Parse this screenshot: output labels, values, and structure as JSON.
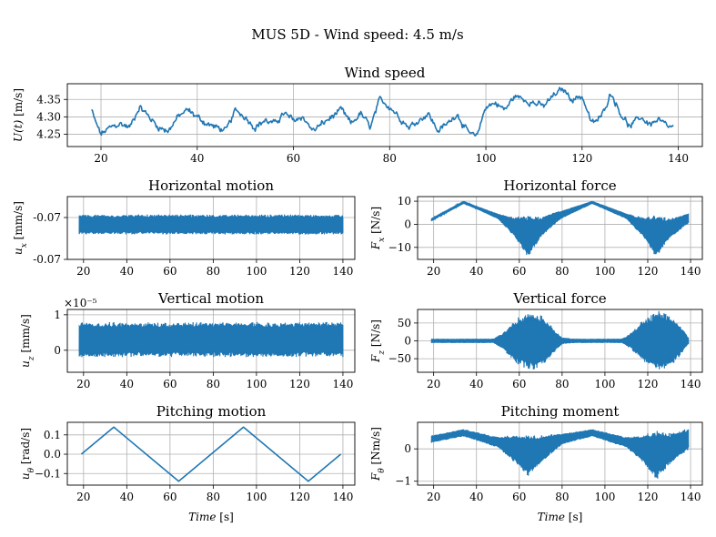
{
  "figure": {
    "title": "MUS 5D - Wind speed: 4.5 m/s"
  },
  "chart_data": [
    {
      "id": "wind",
      "type": "line",
      "title": "Wind speed",
      "xlabel": "",
      "ylabel": "U(t) [m/s]",
      "xlim": [
        13,
        145
      ],
      "ylim": [
        4.215,
        4.395
      ],
      "xticks": [
        20,
        40,
        60,
        80,
        100,
        120,
        140
      ],
      "yticks": [
        4.25,
        4.3,
        4.35
      ],
      "yticklabels": [
        "4.25",
        "4.30",
        "4.35"
      ],
      "grid": true,
      "color": "#1f77b4",
      "x": [
        18,
        19,
        20,
        22,
        24,
        26,
        28,
        30,
        32,
        34,
        36,
        38,
        40,
        42,
        44,
        46,
        48,
        50,
        52,
        54,
        56,
        58,
        60,
        62,
        64,
        66,
        68,
        70,
        72,
        74,
        76,
        78,
        80,
        82,
        84,
        86,
        88,
        90,
        92,
        94,
        96,
        98,
        100,
        102,
        104,
        106,
        108,
        110,
        112,
        114,
        116,
        118,
        120,
        122,
        124,
        126,
        128,
        130,
        132,
        134,
        136,
        138,
        139
      ],
      "y": [
        4.32,
        4.28,
        4.25,
        4.27,
        4.28,
        4.27,
        4.33,
        4.3,
        4.27,
        4.26,
        4.3,
        4.32,
        4.3,
        4.28,
        4.27,
        4.26,
        4.32,
        4.3,
        4.27,
        4.29,
        4.28,
        4.31,
        4.29,
        4.3,
        4.26,
        4.28,
        4.3,
        4.32,
        4.28,
        4.31,
        4.27,
        4.35,
        4.33,
        4.3,
        4.27,
        4.29,
        4.31,
        4.26,
        4.28,
        4.31,
        4.26,
        4.24,
        4.33,
        4.34,
        4.32,
        4.36,
        4.35,
        4.34,
        4.33,
        4.36,
        4.38,
        4.35,
        4.36,
        4.28,
        4.3,
        4.37,
        4.31,
        4.27,
        4.3,
        4.28,
        4.29,
        4.27,
        4.27
      ],
      "noise_amplitude": 0.012
    },
    {
      "id": "hmotion",
      "type": "line",
      "title": "Horizontal motion",
      "xlabel": "",
      "ylabel": "u_x [mm/s]",
      "xlim": [
        12.5,
        145.5
      ],
      "ylim": [
        -0.0701,
        -0.06965
      ],
      "xticks": [
        20,
        40,
        60,
        80,
        100,
        120,
        140
      ],
      "yticks": [
        -0.0701,
        -0.0698
      ],
      "yticklabels": [
        "-0.07",
        "-0.07"
      ],
      "grid": true,
      "color": "#1f77b4",
      "x": [
        18,
        140
      ],
      "y": [
        -0.06985,
        -0.06985
      ],
      "band": {
        "x": [
          18,
          140
        ],
        "half_width": [
          6.5e-05,
          6.5e-05
        ]
      },
      "noise_amplitude": 5e-05
    },
    {
      "id": "hforce",
      "type": "line",
      "title": "Horizontal force",
      "xlabel": "",
      "ylabel": "F_x [N/s]",
      "xlim": [
        12.5,
        145.5
      ],
      "ylim": [
        -15.2,
        12.0
      ],
      "xticks": [
        20,
        40,
        60,
        80,
        100,
        120,
        140
      ],
      "yticks": [
        -10,
        0,
        10
      ],
      "yticklabels": [
        "−10",
        "0",
        "10"
      ],
      "grid": true,
      "color": "#1f77b4",
      "x": [
        19,
        34,
        50,
        64,
        78,
        94,
        110,
        124,
        139
      ],
      "y": [
        2.0,
        9.5,
        3.5,
        -5.0,
        3.5,
        9.5,
        3.5,
        -5.0,
        2.5
      ],
      "band": {
        "x": [
          19,
          40,
          50,
          58,
          64,
          70,
          80,
          94,
          110,
          118,
          124,
          130,
          139
        ],
        "half_width": [
          0.5,
          0.5,
          1.0,
          4.0,
          8.5,
          4.0,
          1.5,
          0.5,
          1.0,
          4.0,
          8.5,
          4.0,
          2.0
        ]
      },
      "noise_amplitude": 0
    },
    {
      "id": "vmotion",
      "type": "line",
      "title": "Vertical motion",
      "xlabel": "",
      "ylabel": "u_z [mm/s]",
      "multiplier": "×10⁻⁵",
      "xlim": [
        12.5,
        145.5
      ],
      "ylim": [
        -0.62,
        1.15
      ],
      "xticks": [
        20,
        40,
        60,
        80,
        100,
        120,
        140
      ],
      "yticks": [
        0,
        1
      ],
      "yticklabels": [
        "0",
        "1"
      ],
      "grid": true,
      "color": "#1f77b4",
      "x": [
        18,
        140
      ],
      "y": [
        0.3,
        0.3
      ],
      "band": {
        "x": [
          18,
          140
        ],
        "half_width": [
          0.45,
          0.45
        ]
      },
      "noise_amplitude": 0.25
    },
    {
      "id": "vforce",
      "type": "line",
      "title": "Vertical force",
      "xlabel": "",
      "ylabel": "F_z [N/s]",
      "xlim": [
        12.5,
        145.5
      ],
      "ylim": [
        -88,
        88
      ],
      "xticks": [
        20,
        40,
        60,
        80,
        100,
        120,
        140
      ],
      "yticks": [
        -50,
        0,
        50
      ],
      "yticklabels": [
        "−50",
        "0",
        "50"
      ],
      "grid": true,
      "color": "#1f77b4",
      "x": [
        19,
        48,
        52,
        58,
        65,
        72,
        77,
        80,
        86,
        108,
        112,
        118,
        125,
        132,
        137,
        139
      ],
      "y": [
        0,
        0,
        0,
        0,
        0,
        0,
        0,
        0,
        0,
        0,
        0,
        0,
        0,
        0,
        0,
        0
      ],
      "band": {
        "x": [
          19,
          48,
          52,
          58,
          65,
          72,
          77,
          80,
          86,
          108,
          112,
          118,
          125,
          132,
          137,
          139
        ],
        "half_width": [
          5,
          5,
          20,
          55,
          78,
          60,
          25,
          8,
          5,
          5,
          20,
          55,
          78,
          60,
          25,
          8
        ]
      },
      "noise_amplitude": 0
    },
    {
      "id": "pmotion",
      "type": "line",
      "title": "Pitching motion",
      "xlabel": "Time [s]",
      "ylabel": "u_θ [rad/s]",
      "xlim": [
        12.5,
        145.5
      ],
      "ylim": [
        -0.16,
        0.165
      ],
      "xticks": [
        20,
        40,
        60,
        80,
        100,
        120,
        140
      ],
      "yticks": [
        -0.1,
        0.0,
        0.1
      ],
      "yticklabels": [
        "−0.1",
        "0.0",
        "0.1"
      ],
      "grid": true,
      "color": "#1f77b4",
      "x": [
        19,
        34,
        64,
        94,
        124,
        139
      ],
      "y": [
        0.0,
        0.14,
        -0.14,
        0.14,
        -0.14,
        0.0
      ],
      "noise_amplitude": 0
    },
    {
      "id": "pmoment",
      "type": "line",
      "title": "Pitching moment",
      "xlabel": "Time [s]",
      "ylabel": "F_θ [Nm/s]",
      "xlim": [
        12.5,
        145.5
      ],
      "ylim": [
        -1.12,
        0.82
      ],
      "xticks": [
        20,
        40,
        60,
        80,
        100,
        120,
        140
      ],
      "yticks": [
        -1,
        0
      ],
      "yticklabels": [
        "−1",
        "0"
      ],
      "grid": true,
      "color": "#1f77b4",
      "x": [
        19,
        34,
        50,
        58,
        64,
        70,
        80,
        94,
        110,
        118,
        124,
        130,
        139
      ],
      "y": [
        0.3,
        0.5,
        0.2,
        0.0,
        -0.2,
        0.0,
        0.3,
        0.5,
        0.2,
        0.0,
        -0.2,
        0.0,
        0.3
      ],
      "band": {
        "x": [
          19,
          34,
          50,
          58,
          64,
          70,
          80,
          94,
          110,
          118,
          124,
          130,
          139
        ],
        "half_width": [
          0.1,
          0.1,
          0.15,
          0.4,
          0.6,
          0.4,
          0.15,
          0.1,
          0.15,
          0.4,
          0.7,
          0.45,
          0.3
        ]
      },
      "noise_amplitude": 0
    }
  ]
}
